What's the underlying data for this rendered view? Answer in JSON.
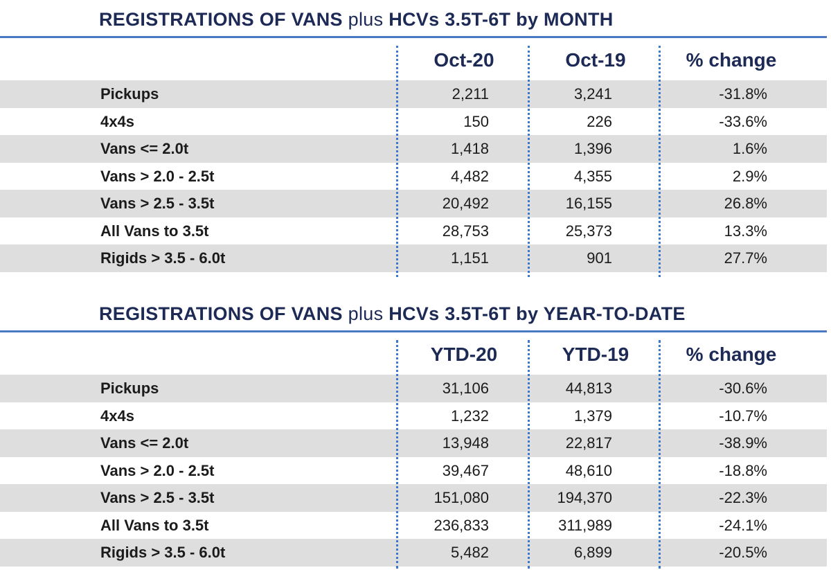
{
  "monthly": {
    "title_bold_1": "REGISTRATIONS OF VANS",
    "title_light": "plus",
    "title_bold_2": "HCVs 3.5T-6T by MONTH",
    "columns": [
      "Oct-20",
      "Oct-19",
      "% change"
    ],
    "rows": [
      {
        "label": "Pickups",
        "current": "2,211",
        "previous": "3,241",
        "change": "-31.8%"
      },
      {
        "label": "4x4s",
        "current": "150",
        "previous": "226",
        "change": "-33.6%"
      },
      {
        "label": "Vans <= 2.0t",
        "current": "1,418",
        "previous": "1,396",
        "change": "1.6%"
      },
      {
        "label": "Vans > 2.0 - 2.5t",
        "current": "4,482",
        "previous": "4,355",
        "change": "2.9%"
      },
      {
        "label": "Vans > 2.5 - 3.5t",
        "current": "20,492",
        "previous": "16,155",
        "change": "26.8%"
      },
      {
        "label": "All Vans to 3.5t",
        "current": "28,753",
        "previous": "25,373",
        "change": "13.3%"
      },
      {
        "label": "Rigids > 3.5 - 6.0t",
        "current": "1,151",
        "previous": "901",
        "change": "27.7%"
      }
    ]
  },
  "ytd": {
    "title_bold_1": "REGISTRATIONS OF VANS",
    "title_light": "plus",
    "title_bold_2": "HCVs 3.5T-6T by YEAR-TO-DATE",
    "columns": [
      "YTD-20",
      "YTD-19",
      "% change"
    ],
    "rows": [
      {
        "label": "Pickups",
        "current": "31,106",
        "previous": "44,813",
        "change": "-30.6%"
      },
      {
        "label": "4x4s",
        "current": "1,232",
        "previous": "1,379",
        "change": "-10.7%"
      },
      {
        "label": "Vans <= 2.0t",
        "current": "13,948",
        "previous": "22,817",
        "change": "-38.9%"
      },
      {
        "label": "Vans > 2.0 - 2.5t",
        "current": "39,467",
        "previous": "48,610",
        "change": "-18.8%"
      },
      {
        "label": "Vans > 2.5 - 3.5t",
        "current": "151,080",
        "previous": "194,370",
        "change": "-22.3%"
      },
      {
        "label": "All Vans to 3.5t",
        "current": "236,833",
        "previous": "311,989",
        "change": "-24.1%"
      },
      {
        "label": "Rigids > 3.5 - 6.0t",
        "current": "5,482",
        "previous": "6,899",
        "change": "-20.5%"
      }
    ]
  },
  "colors": {
    "title": "#1c2a55",
    "rule": "#4a79c4",
    "divider": "#3a78d0",
    "row_shade": "#dedede"
  }
}
